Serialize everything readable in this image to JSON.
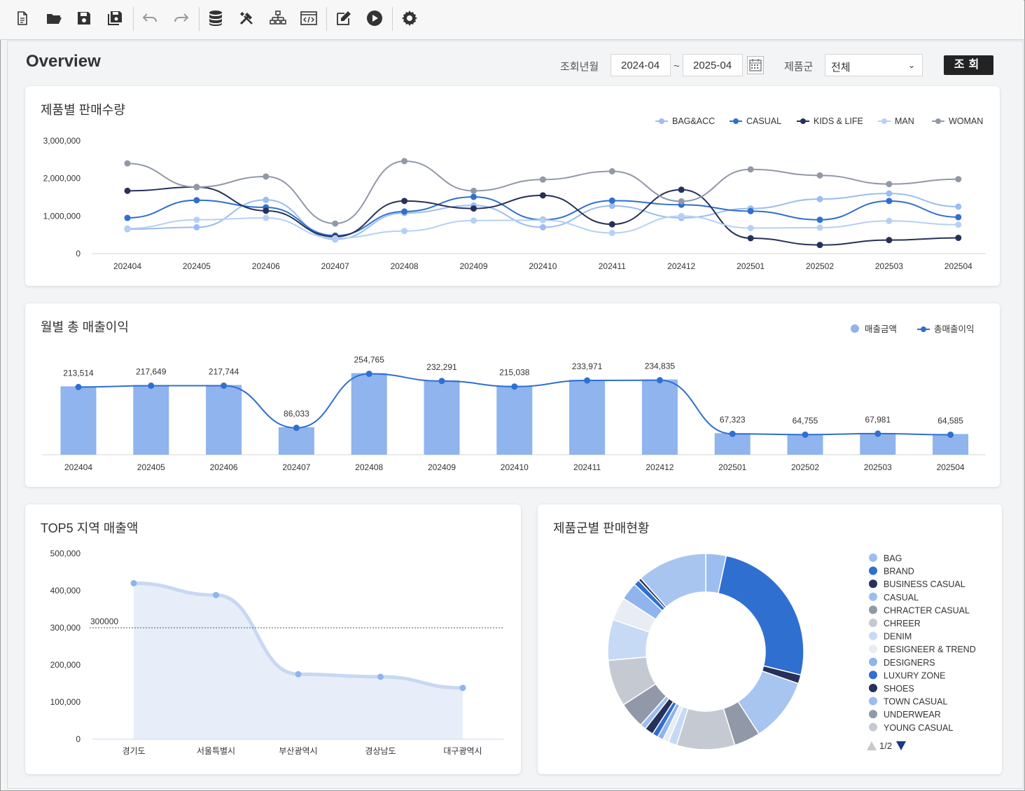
{
  "page": {
    "title": "Overview"
  },
  "filters": {
    "period_label": "조회년월",
    "from": "2024-04",
    "tilde": "~",
    "to": "2025-04",
    "group_label": "제품군",
    "group_value": "전체",
    "search_label": "조회"
  },
  "toolbar": {
    "icons": [
      "new-document-icon",
      "open-folder-icon",
      "save-icon",
      "save-all-icon",
      "undo-icon",
      "redo-icon",
      "database-icon",
      "tools-icon",
      "hierarchy-icon",
      "code-window-icon",
      "edit-icon",
      "play-icon",
      "settings-icon"
    ]
  },
  "cards": {
    "line_title": "제품별 판매수량",
    "combo_title": "월별 총 매출이익",
    "area_title": "TOP5 지역 매출액",
    "donut_title": "제품군별 판매현황"
  },
  "colors": {
    "BAG&ACC": "#9cbdf0",
    "CASUAL": "#2f6fd0",
    "KIDS & LIFE": "#27305a",
    "MAN": "#b6d0f5",
    "WOMAN": "#9198a8",
    "bar": "#8fb4ee",
    "combo_line": "#2f6fd0",
    "area_fill": "#e8eef9",
    "area_line": "#c8d8f2",
    "area_point": "#8fb4ee"
  },
  "chart_data": [
    {
      "type": "line",
      "title": "제품별 판매수량",
      "categories": [
        "202404",
        "202405",
        "202406",
        "202407",
        "202408",
        "202409",
        "202410",
        "202411",
        "202412",
        "202501",
        "202502",
        "202503",
        "202504"
      ],
      "y_ticks": [
        "3,000,000",
        "2,000,000",
        "1,000,000",
        "0"
      ],
      "ylim": [
        0,
        3000000
      ],
      "legend_position": "top-right",
      "series": [
        {
          "name": "BAG&ACC",
          "values": [
            650000,
            700000,
            1430000,
            380000,
            1080000,
            1280000,
            700000,
            1270000,
            950000,
            1200000,
            1450000,
            1600000,
            1250000
          ]
        },
        {
          "name": "CASUAL",
          "values": [
            950000,
            1420000,
            1230000,
            480000,
            1120000,
            1510000,
            900000,
            1410000,
            1300000,
            1130000,
            900000,
            1400000,
            970000
          ]
        },
        {
          "name": "KIDS & LIFE",
          "values": [
            1670000,
            1770000,
            1140000,
            450000,
            1400000,
            1200000,
            1550000,
            780000,
            1700000,
            410000,
            230000,
            360000,
            420000
          ]
        },
        {
          "name": "MAN",
          "values": [
            670000,
            900000,
            950000,
            410000,
            600000,
            880000,
            890000,
            550000,
            1000000,
            680000,
            690000,
            870000,
            770000
          ]
        },
        {
          "name": "WOMAN",
          "values": [
            2400000,
            1770000,
            2050000,
            800000,
            2460000,
            1670000,
            1970000,
            2190000,
            1390000,
            2240000,
            2080000,
            1850000,
            1980000
          ]
        }
      ]
    },
    {
      "type": "bar",
      "title": "월별 총 매출이익",
      "categories": [
        "202404",
        "202405",
        "202406",
        "202407",
        "202408",
        "202409",
        "202410",
        "202411",
        "202412",
        "202501",
        "202502",
        "202503",
        "202504"
      ],
      "legend_position": "top-right",
      "series": [
        {
          "name": "매출금액",
          "type": "bar",
          "values": [
            213514,
            217649,
            217744,
            86033,
            254765,
            232291,
            215038,
            233971,
            234835,
            67323,
            64755,
            67981,
            64585
          ]
        },
        {
          "name": "총매출이익",
          "type": "line",
          "values": [
            213514,
            217649,
            217744,
            86033,
            254765,
            232291,
            215038,
            233971,
            234835,
            67323,
            64755,
            67981,
            64585
          ]
        }
      ],
      "data_labels": [
        "213,514",
        "217,649",
        "217,744",
        "86,033",
        "254,765",
        "232,291",
        "215,038",
        "233,971",
        "234,835",
        "67,323",
        "64,755",
        "67,981",
        "64,585"
      ],
      "ylim": [
        0,
        300000
      ]
    },
    {
      "type": "area",
      "title": "TOP5 지역 매출액",
      "categories": [
        "경기도",
        "서울특별시",
        "부산광역시",
        "경상남도",
        "대구광역시"
      ],
      "values": [
        420000,
        388000,
        175000,
        168000,
        138000
      ],
      "y_ticks": [
        "500,000",
        "400,000",
        "300,000",
        "200,000",
        "100,000",
        "0"
      ],
      "ylim": [
        0,
        500000
      ],
      "reference_line": {
        "value": 300000,
        "label": "300000"
      }
    },
    {
      "type": "pie",
      "title": "제품군별 판매현황",
      "legend_position": "right",
      "legend": [
        "BAG",
        "BRAND",
        "BUSINESS CASUAL",
        "CASUAL",
        "CHRACTER CASUAL",
        "CHREER",
        "DENIM",
        "DESIGNEER & TREND",
        "DESIGNERS",
        "LUXURY ZONE",
        "SHOES",
        "TOWN CASUAL",
        "UNDERWEAR",
        "YOUNG CASUAL"
      ],
      "legend_colors": [
        "#9cbdf0",
        "#2f6fd0",
        "#27305a",
        "#9cbdf0",
        "#9198a8",
        "#c5c9d2",
        "#c6daf6",
        "#e8edf4",
        "#8fb4ee",
        "#2f6fd0",
        "#27305a",
        "#9cbdf0",
        "#9198a8",
        "#c5c9d2"
      ],
      "pager": "1/2",
      "slices": [
        {
          "value": 3.5,
          "color": "#9cbdf0"
        },
        {
          "value": 26.5,
          "color": "#2f6fd0"
        },
        {
          "value": 1.5,
          "color": "#27305a"
        },
        {
          "value": 11.0,
          "color": "#a8c5f0"
        },
        {
          "value": 4.5,
          "color": "#9198a8"
        },
        {
          "value": 10.0,
          "color": "#c5c9d2"
        },
        {
          "value": 1.5,
          "color": "#c6daf6"
        },
        {
          "value": 1.0,
          "color": "#e8edf4"
        },
        {
          "value": 1.0,
          "color": "#8fb4ee"
        },
        {
          "value": 1.0,
          "color": "#2f6fd0"
        },
        {
          "value": 1.5,
          "color": "#27305a"
        },
        {
          "value": 1.0,
          "color": "#9cbdf0"
        },
        {
          "value": 4.5,
          "color": "#9198a8"
        },
        {
          "value": 8.0,
          "color": "#c5c9d2"
        },
        {
          "value": 7.0,
          "color": "#c6daf6"
        },
        {
          "value": 4.0,
          "color": "#e8edf4"
        },
        {
          "value": 3.0,
          "color": "#8fb4ee"
        },
        {
          "value": 1.0,
          "color": "#2f6fd0"
        },
        {
          "value": 0.5,
          "color": "#27305a"
        },
        {
          "value": 12.0,
          "color": "#a8c5f0"
        }
      ]
    }
  ]
}
